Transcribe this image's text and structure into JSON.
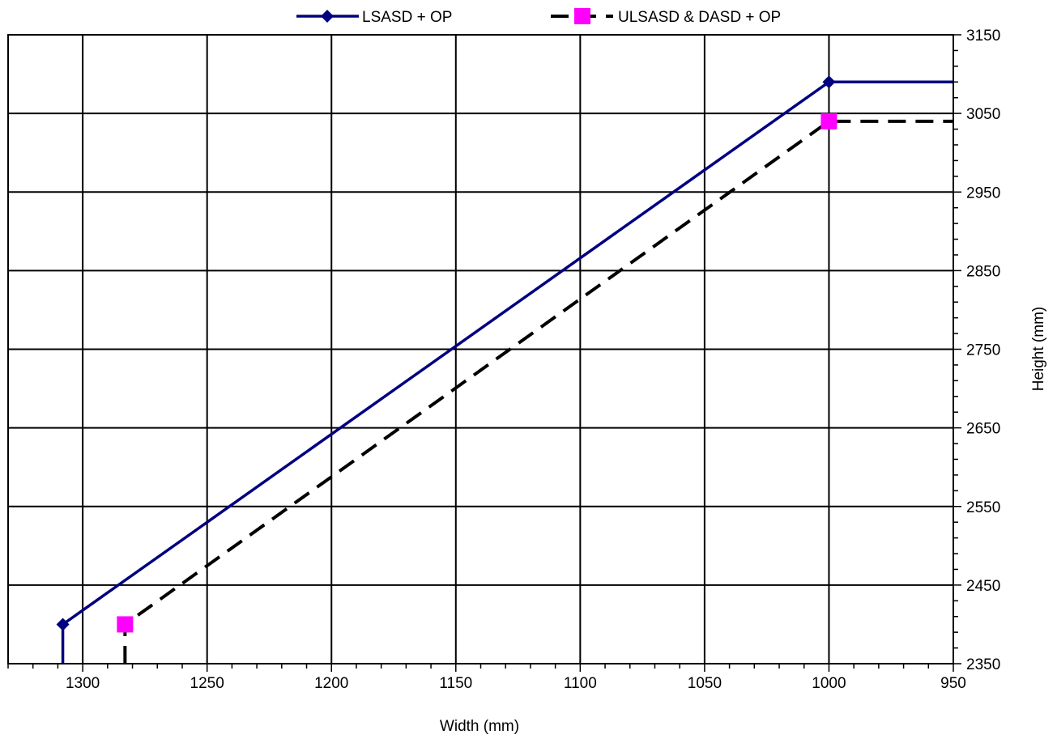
{
  "chart_data": {
    "type": "line",
    "title": "",
    "xlabel": "Width (mm)",
    "ylabel": "Height (mm)",
    "x_axis_reversed": true,
    "xlim": [
      950,
      1330
    ],
    "ylim": [
      2350,
      3150
    ],
    "xticks": [
      1300,
      1250,
      1200,
      1150,
      1100,
      1050,
      1000,
      950
    ],
    "yticks": [
      2350,
      2450,
      2550,
      2650,
      2750,
      2850,
      2950,
      3050,
      3150
    ],
    "y_axis_side": "right",
    "grid": true,
    "legend_position": "top-center",
    "series": [
      {
        "name": "LSASD + OP",
        "color": "#000080",
        "line_style": "solid",
        "marker": "diamond",
        "points": [
          [
            1308,
            2350
          ],
          [
            1308,
            2400
          ],
          [
            1000,
            3090
          ],
          [
            950,
            3090
          ]
        ],
        "marker_points": [
          [
            1308,
            2400
          ],
          [
            1000,
            3090
          ]
        ]
      },
      {
        "name": "ULSASD & DASD + OP",
        "color": "#000000",
        "marker_color": "#ff00ff",
        "line_style": "dashed",
        "marker": "square",
        "points": [
          [
            1283,
            2350
          ],
          [
            1283,
            2400
          ],
          [
            1000,
            3040
          ],
          [
            950,
            3040
          ]
        ],
        "marker_points": [
          [
            1283,
            2400
          ],
          [
            1000,
            3040
          ]
        ]
      }
    ]
  }
}
